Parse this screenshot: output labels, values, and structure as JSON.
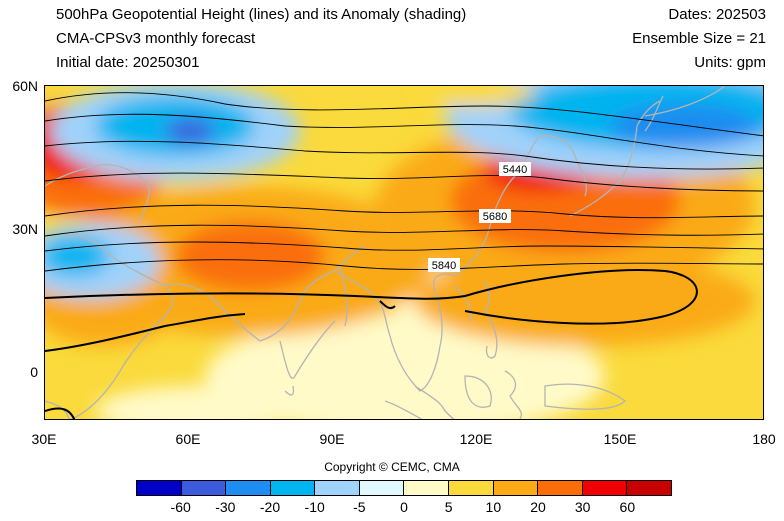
{
  "header": {
    "title": "500hPa Geopotential Height (lines) and its Anomaly (shading)",
    "model": "CMA-CPSv3 monthly forecast",
    "init": "Initial date: 20250301",
    "dates": "Dates: 202503",
    "ensemble": "Ensemble Size = 21",
    "units": "Units: gpm"
  },
  "map": {
    "lat_range": [
      -10,
      60
    ],
    "lon_range": [
      30,
      180
    ],
    "lat_ticks": [
      "60N",
      "30N",
      "0"
    ],
    "lon_ticks": [
      "30E",
      "60E",
      "90E",
      "120E",
      "150E",
      "180"
    ],
    "contour_labels": [
      "5440",
      "5680",
      "5840"
    ],
    "colors": {
      "land": "#b4b4b4",
      "contour": "#000000"
    }
  },
  "copyright": "Copyright © CEMC, CMA",
  "colorbar": {
    "colors": [
      "#0000c8",
      "#3c5adc",
      "#1e8cf0",
      "#00b4f0",
      "#a0d2fa",
      "#e0f8ff",
      "#fffac8",
      "#fada3c",
      "#faaa14",
      "#fa6e0a",
      "#f00000",
      "#c80000"
    ],
    "labels": [
      "-60",
      "-30",
      "-20",
      "-10",
      "-5",
      "0",
      "5",
      "10",
      "20",
      "30",
      "60"
    ]
  }
}
